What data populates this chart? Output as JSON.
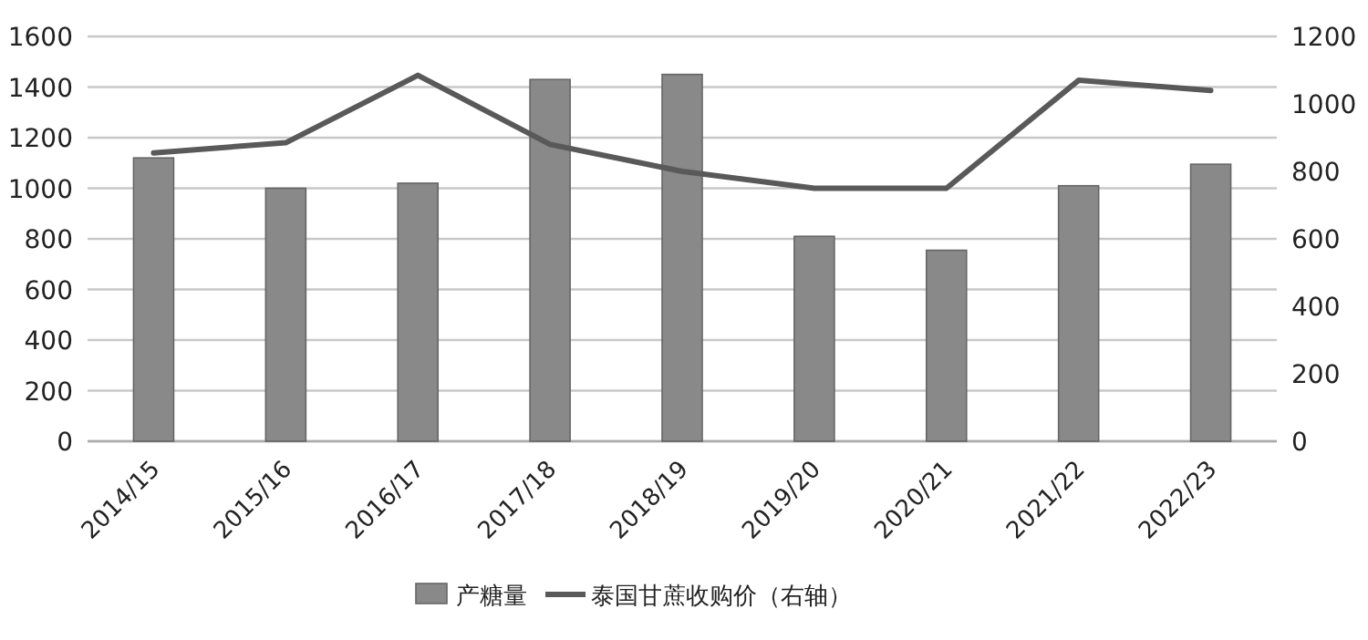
{
  "chart_data": {
    "type": "bar",
    "categories": [
      "2014/15",
      "2015/16",
      "2016/17",
      "2017/18",
      "2018/19",
      "2019/20",
      "2020/21",
      "2021/22",
      "2022/23"
    ],
    "series": [
      {
        "name": "产糖量",
        "color": "#898989",
        "values": [
          1120,
          1000,
          1020,
          1430,
          1450,
          810,
          755,
          1010,
          1095
        ]
      },
      {
        "name": "泰国甘蔗收购价（右轴）",
        "type": "line",
        "axis": "y2",
        "color": "#595959",
        "values": [
          855,
          885,
          1085,
          880,
          800,
          750,
          750,
          1070,
          1040
        ]
      }
    ],
    "ylim": [
      0,
      1600
    ],
    "yticks": [
      0,
      200,
      400,
      600,
      800,
      1000,
      1200,
      1400,
      1600
    ],
    "y2lim": [
      0,
      1200
    ],
    "y2ticks": [
      0,
      200,
      400,
      600,
      800,
      1000,
      1200
    ],
    "grid": "y",
    "legend": "bottom"
  }
}
